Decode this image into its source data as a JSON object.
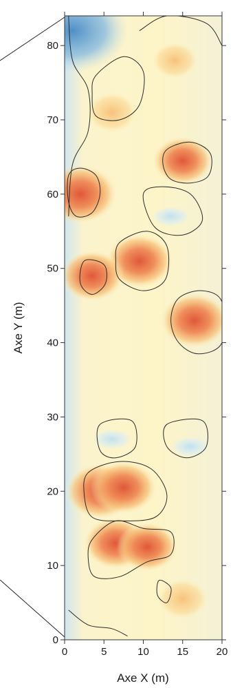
{
  "chart_data": {
    "type": "heatmap",
    "title": "",
    "xlabel": "Axe X (m)",
    "ylabel": "Axe Y (m)",
    "xlim": [
      0,
      20
    ],
    "ylim": [
      0,
      84
    ],
    "x_ticks": [
      0,
      5,
      10,
      15,
      20
    ],
    "y_ticks": [
      0,
      10,
      20,
      30,
      40,
      50,
      60,
      70,
      80
    ],
    "x_tick_labels": [
      "0",
      "5",
      "10",
      "15",
      "20"
    ],
    "y_tick_labels": [
      "0",
      "10",
      "20",
      "30",
      "40",
      "50",
      "60",
      "70",
      "80"
    ],
    "grid": false,
    "legend": "none",
    "colormap": {
      "low": "#4f8fc6",
      "mid_low": "#bfe0ef",
      "mid": "#fdf6c6",
      "mid_high": "#f7c27b",
      "high": "#e0573a"
    },
    "hotspots": [
      {
        "x": 2.0,
        "y": 60.0,
        "level": 1.0
      },
      {
        "x": 4.5,
        "y": 20.0,
        "level": 0.92
      },
      {
        "x": 7.5,
        "y": 20.5,
        "level": 0.85
      },
      {
        "x": 16.5,
        "y": 43.0,
        "level": 0.9
      },
      {
        "x": 9.5,
        "y": 51.0,
        "level": 0.88
      },
      {
        "x": 3.5,
        "y": 49.0,
        "level": 0.8
      },
      {
        "x": 6.5,
        "y": 13.0,
        "level": 0.82
      },
      {
        "x": 10.5,
        "y": 12.5,
        "level": 0.75
      },
      {
        "x": 15.0,
        "y": 64.5,
        "level": 0.74
      },
      {
        "x": 6.0,
        "y": 71.0,
        "level": 0.55
      },
      {
        "x": 14.0,
        "y": 78.0,
        "level": 0.45
      },
      {
        "x": 15.0,
        "y": 5.5,
        "level": 0.55
      }
    ],
    "cold_spots": [
      {
        "x": 1.0,
        "y": 82.0,
        "level": 0.1
      },
      {
        "x": 13.5,
        "y": 57.0,
        "level": 0.3
      },
      {
        "x": 6.0,
        "y": 27.0,
        "level": 0.33
      },
      {
        "x": 16.0,
        "y": 26.0,
        "level": 0.34
      }
    ],
    "contour_lines": [
      {
        "points": [
          [
            0.5,
            62.5
          ],
          [
            2.0,
            63.5
          ],
          [
            4.0,
            62.5
          ],
          [
            4.5,
            60.0
          ],
          [
            3.5,
            57.5
          ],
          [
            1.5,
            57.0
          ],
          [
            0.5,
            59.0
          ]
        ],
        "closed": true
      },
      {
        "points": [
          [
            2.5,
            51.0
          ],
          [
            5.0,
            50.5
          ],
          [
            5.2,
            48.0
          ],
          [
            3.5,
            46.5
          ],
          [
            2.0,
            48.0
          ]
        ],
        "closed": true
      },
      {
        "points": [
          [
            7.0,
            53.5
          ],
          [
            10.5,
            55.0
          ],
          [
            13.0,
            53.0
          ],
          [
            12.8,
            48.5
          ],
          [
            10.0,
            47.0
          ],
          [
            7.0,
            48.5
          ],
          [
            6.5,
            51.0
          ]
        ],
        "closed": true
      },
      {
        "points": [
          [
            14.5,
            46.0
          ],
          [
            17.5,
            47.0
          ],
          [
            20.0,
            45.5
          ],
          [
            20.0,
            40.0
          ],
          [
            17.0,
            38.5
          ],
          [
            14.5,
            40.0
          ],
          [
            13.5,
            43.0
          ]
        ],
        "closed": true
      },
      {
        "points": [
          [
            13.0,
            66.0
          ],
          [
            16.0,
            67.0
          ],
          [
            18.5,
            65.5
          ],
          [
            18.3,
            62.5
          ],
          [
            16.0,
            61.5
          ],
          [
            13.5,
            62.0
          ],
          [
            12.5,
            64.0
          ]
        ],
        "closed": true
      },
      {
        "points": [
          [
            3.0,
            22.5
          ],
          [
            7.0,
            24.0
          ],
          [
            11.0,
            23.0
          ],
          [
            13.0,
            19.5
          ],
          [
            11.5,
            16.5
          ],
          [
            7.0,
            16.0
          ],
          [
            3.5,
            16.5
          ],
          [
            2.5,
            19.5
          ]
        ],
        "closed": true
      },
      {
        "points": [
          [
            3.5,
            13.5
          ],
          [
            6.5,
            16.0
          ],
          [
            10.0,
            15.0
          ],
          [
            13.5,
            14.5
          ],
          [
            13.5,
            11.5
          ],
          [
            10.5,
            10.5
          ],
          [
            7.0,
            8.5
          ],
          [
            3.8,
            8.5
          ],
          [
            3.0,
            11.0
          ]
        ],
        "closed": true
      },
      {
        "points": [
          [
            4.0,
            76.0
          ],
          [
            7.5,
            78.5
          ],
          [
            10.0,
            76.5
          ],
          [
            9.5,
            72.0
          ],
          [
            7.0,
            70.0
          ],
          [
            4.0,
            70.5
          ],
          [
            3.5,
            73.5
          ]
        ],
        "closed": true
      },
      {
        "points": [
          [
            9.5,
            82.0
          ],
          [
            13.0,
            84.0
          ],
          [
            18.0,
            83.0
          ],
          [
            20.0,
            80.0
          ]
        ],
        "closed": false
      },
      {
        "points": [
          [
            0.5,
            84.0
          ],
          [
            1.0,
            78.0
          ],
          [
            3.0,
            74.0
          ],
          [
            3.0,
            68.5
          ],
          [
            1.0,
            64.0
          ],
          [
            0.5,
            57.0
          ]
        ],
        "closed": false
      },
      {
        "points": [
          [
            10.0,
            60.0
          ],
          [
            12.5,
            61.0
          ],
          [
            16.0,
            60.0
          ],
          [
            17.5,
            56.5
          ],
          [
            15.0,
            54.5
          ],
          [
            11.5,
            55.5
          ]
        ],
        "closed": true
      },
      {
        "points": [
          [
            4.5,
            29.0
          ],
          [
            8.5,
            29.5
          ],
          [
            9.0,
            26.0
          ],
          [
            6.5,
            24.5
          ],
          [
            4.5,
            25.5
          ]
        ],
        "closed": true
      },
      {
        "points": [
          [
            13.0,
            29.0
          ],
          [
            17.5,
            29.5
          ],
          [
            18.0,
            26.0
          ],
          [
            15.5,
            24.5
          ],
          [
            13.0,
            26.0
          ]
        ],
        "closed": true
      },
      {
        "points": [
          [
            0.5,
            4.0
          ],
          [
            3.0,
            2.0
          ],
          [
            6.0,
            1.5
          ],
          [
            8.0,
            0.5
          ]
        ],
        "closed": false
      },
      {
        "points": [
          [
            12.0,
            8.0
          ],
          [
            13.5,
            7.0
          ],
          [
            13.0,
            5.0
          ],
          [
            11.8,
            6.0
          ]
        ],
        "closed": true
      }
    ]
  }
}
